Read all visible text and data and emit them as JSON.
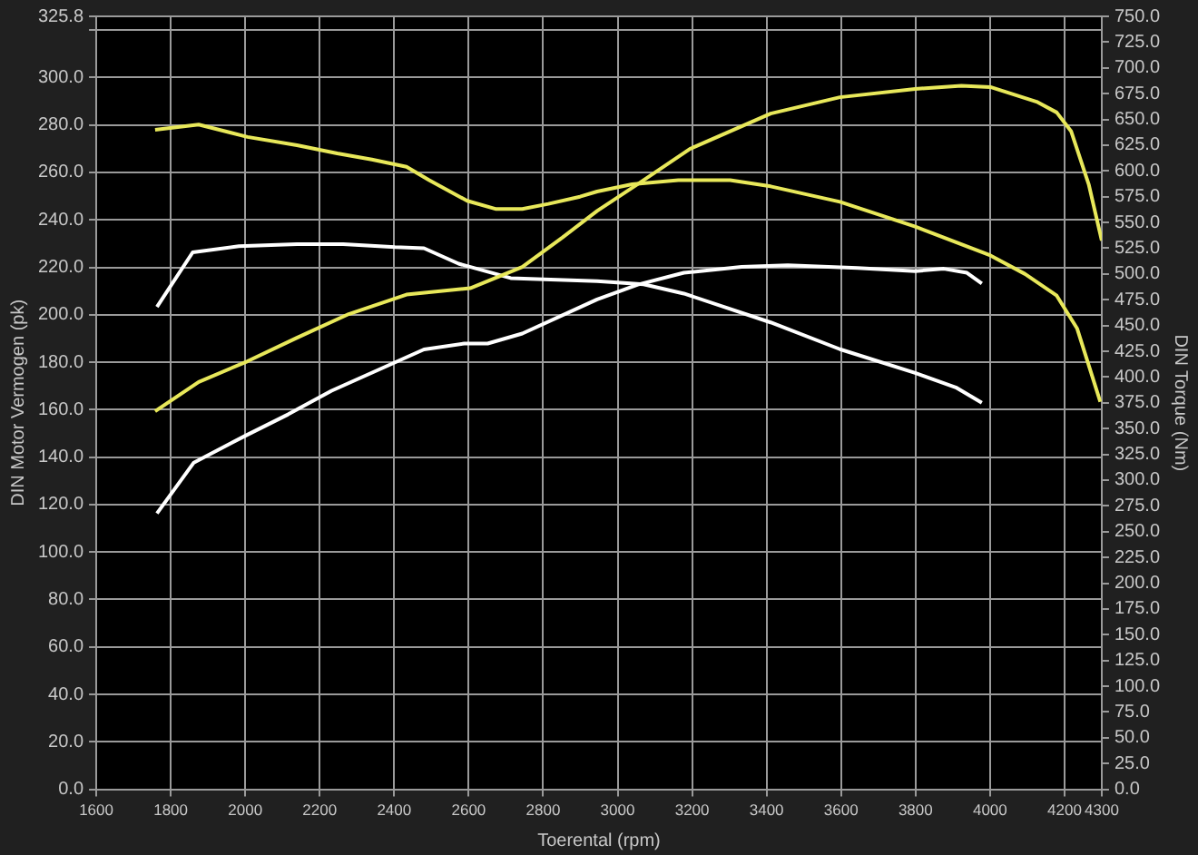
{
  "chart_data": {
    "type": "line",
    "xlabel": "Toerental (rpm)",
    "ylabel": "DIN Motor Vermogen (pk)",
    "y2label": "DIN Torque (Nm)",
    "xlim": [
      1600,
      4300
    ],
    "xticks": [
      1600,
      1800,
      2000,
      2200,
      2400,
      2600,
      2800,
      3000,
      3200,
      3400,
      3600,
      3800,
      4000,
      4200,
      4300
    ],
    "ylim": [
      0,
      325.8
    ],
    "yticks": [
      {
        "value": 0,
        "label": "0.0"
      },
      {
        "value": 20,
        "label": "20.0"
      },
      {
        "value": 40,
        "label": "40.0"
      },
      {
        "value": 60,
        "label": "60.0"
      },
      {
        "value": 80,
        "label": "80.0"
      },
      {
        "value": 100,
        "label": "100.0"
      },
      {
        "value": 120,
        "label": "120.0"
      },
      {
        "value": 140,
        "label": "140.0"
      },
      {
        "value": 160,
        "label": "160.0"
      },
      {
        "value": 180,
        "label": "180.0"
      },
      {
        "value": 200,
        "label": "200.0"
      },
      {
        "value": 220,
        "label": "220.0"
      },
      {
        "value": 240,
        "label": "240.0"
      },
      {
        "value": 260,
        "label": "260.0"
      },
      {
        "value": 280,
        "label": "280.0"
      },
      {
        "value": 300,
        "label": "300.0"
      },
      {
        "value": 320,
        "label": null
      },
      {
        "value": 325.8,
        "label": "325.8"
      }
    ],
    "y2lim": [
      0,
      750
    ],
    "y2ticks": [
      {
        "value": 0,
        "label": "0.0"
      },
      {
        "value": 25,
        "label": "25.0"
      },
      {
        "value": 50,
        "label": "50.0"
      },
      {
        "value": 75,
        "label": "75.0"
      },
      {
        "value": 100,
        "label": "100.0"
      },
      {
        "value": 125,
        "label": "125.0"
      },
      {
        "value": 150,
        "label": "150.0"
      },
      {
        "value": 175,
        "label": "175.0"
      },
      {
        "value": 200,
        "label": "200.0"
      },
      {
        "value": 225,
        "label": "225.0"
      },
      {
        "value": 250,
        "label": "250.0"
      },
      {
        "value": 275,
        "label": "275.0"
      },
      {
        "value": 300,
        "label": "300.0"
      },
      {
        "value": 325,
        "label": "325.0"
      },
      {
        "value": 350,
        "label": "350.0"
      },
      {
        "value": 375,
        "label": "375.0"
      },
      {
        "value": 400,
        "label": "400.0"
      },
      {
        "value": 425,
        "label": "425.0"
      },
      {
        "value": 450,
        "label": "450.0"
      },
      {
        "value": 475,
        "label": "475.0"
      },
      {
        "value": 500,
        "label": "500.0"
      },
      {
        "value": 525,
        "label": "525.0"
      },
      {
        "value": 550,
        "label": "550.0"
      },
      {
        "value": 575,
        "label": "575.0"
      },
      {
        "value": 600,
        "label": "600.0"
      },
      {
        "value": 625,
        "label": "625.0"
      },
      {
        "value": 650,
        "label": "650.0"
      },
      {
        "value": 675,
        "label": "675.0"
      },
      {
        "value": 700,
        "label": "700.0"
      },
      {
        "value": 725,
        "label": "725.0"
      },
      {
        "value": 750,
        "label": "750.0"
      }
    ],
    "grid": true,
    "legend": false,
    "series": [
      {
        "color": "#e8e85a",
        "axis": "y2",
        "x": [
          1758,
          1875,
          2006,
          2139,
          2247,
          2340,
          2433,
          2494,
          2596,
          2674,
          2744,
          2814,
          2899,
          2945,
          3039,
          3163,
          3302,
          3411,
          3597,
          3799,
          4001,
          4094,
          4179,
          4234,
          4296
        ],
        "values": [
          640,
          645,
          633,
          625,
          617,
          611,
          604,
          591,
          571,
          563,
          563,
          568,
          575,
          580,
          587,
          591,
          591,
          585,
          570,
          546,
          518,
          500,
          479,
          447,
          376
        ]
      },
      {
        "color": "#e8e85a",
        "x": [
          1758,
          1875,
          2006,
          2139,
          2278,
          2433,
          2604,
          2744,
          2852,
          2945,
          3053,
          3194,
          3411,
          3597,
          3799,
          3923,
          4001,
          4125,
          4179,
          4218,
          4265,
          4300
        ],
        "values": [
          159.3,
          171.7,
          180.4,
          190.3,
          200.3,
          208.5,
          211.2,
          220.2,
          232.6,
          243.8,
          255,
          269.9,
          284.8,
          291.7,
          295.2,
          296.5,
          296,
          289.8,
          285.3,
          277.3,
          255,
          231.3
        ]
      },
      {
        "color": "#ffffff",
        "axis": "y2",
        "x": [
          1763,
          1859,
          1983,
          2139,
          2263,
          2402,
          2480,
          2573,
          2713,
          2945,
          3070,
          3178,
          3411,
          3597,
          3799,
          3908,
          3978
        ],
        "values": [
          468,
          521,
          527,
          529,
          529,
          526,
          525,
          510,
          496,
          493,
          490,
          481,
          453,
          427,
          404,
          390,
          375
        ]
      },
      {
        "color": "#ffffff",
        "x": [
          1763,
          1862,
          1999,
          2115,
          2232,
          2480,
          2588,
          2651,
          2744,
          2945,
          3054,
          3178,
          3333,
          3457,
          3644,
          3799,
          3876,
          3938,
          3978
        ],
        "values": [
          116.3,
          137.7,
          148.9,
          158,
          168,
          185.4,
          187.9,
          187.9,
          192.1,
          206.5,
          212.7,
          217.7,
          220.2,
          220.9,
          219.7,
          218.4,
          219.4,
          217.7,
          213.2
        ]
      }
    ]
  }
}
